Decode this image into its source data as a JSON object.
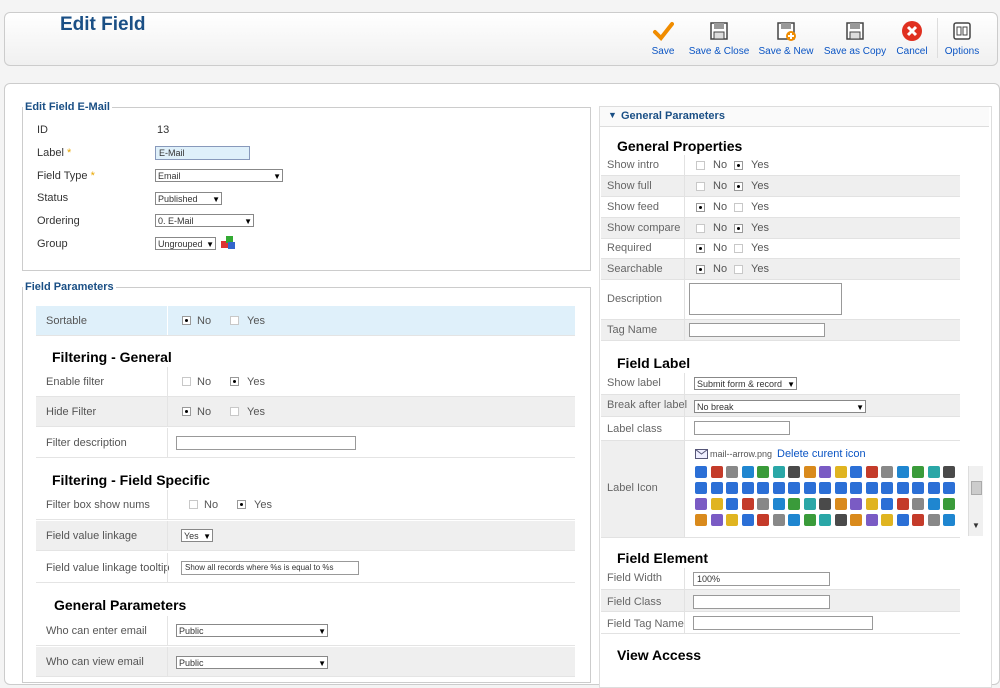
{
  "header": {
    "title": "Edit Field"
  },
  "toolbar": {
    "save": "Save",
    "save_close": "Save & Close",
    "save_new": "Save & New",
    "save_copy": "Save as Copy",
    "cancel": "Cancel",
    "options": "Options"
  },
  "edit_field": {
    "legend": "Edit Field E-Mail",
    "id_label": "ID",
    "id_value": "13",
    "label_label": "Label",
    "label_value": "E-Mail",
    "field_type_label": "Field Type",
    "field_type_value": "Email",
    "status_label": "Status",
    "status_value": "Published",
    "ordering_label": "Ordering",
    "ordering_value": "0. E-Mail",
    "group_label": "Group",
    "group_value": "Ungrouped",
    "required_mark": "*"
  },
  "field_parameters": {
    "legend": "Field Parameters",
    "sortable": "Sortable",
    "no": "No",
    "yes": "Yes",
    "filtering_general": "Filtering - General",
    "enable_filter": "Enable filter",
    "hide_filter": "Hide Filter",
    "filter_description": "Filter description",
    "filtering_specific": "Filtering - Field Specific",
    "filter_box_show_nums": "Filter box show nums",
    "field_value_linkage": "Field value linkage",
    "field_value_linkage_value": "Yes",
    "field_value_linkage_tooltip": "Field value linkage tooltip",
    "tooltip_value": "Show all records where %s is equal to %s",
    "general_parameters": "General Parameters",
    "who_can_enter": "Who can enter email",
    "who_can_enter_value": "Public",
    "who_can_view": "Who can view email",
    "who_can_view_value": "Public"
  },
  "general_panel": {
    "header": "General Parameters",
    "general_properties": "General Properties",
    "show_intro": "Show intro",
    "show_full": "Show full",
    "show_feed": "Show feed",
    "show_compare": "Show compare",
    "required": "Required",
    "searchable": "Searchable",
    "description": "Description",
    "tag_name": "Tag Name",
    "field_label": "Field Label",
    "show_label": "Show label",
    "show_label_value": "Submit form & record",
    "break_after_label": "Break after label",
    "break_after_label_value": "No break",
    "label_class": "Label class",
    "label_icon": "Label Icon",
    "icon_file": "mail--arrow.png",
    "delete_icon": "Delete curent icon",
    "field_element": "Field Element",
    "field_width": "Field Width",
    "field_width_value": "100%",
    "field_class": "Field Class",
    "field_tag_name": "Field Tag Name",
    "view_access": "View Access",
    "no": "No",
    "yes": "Yes"
  },
  "colors": {
    "brand": "#1a4f85",
    "link": "#0b55c4",
    "highlight": "#dff0fa"
  }
}
